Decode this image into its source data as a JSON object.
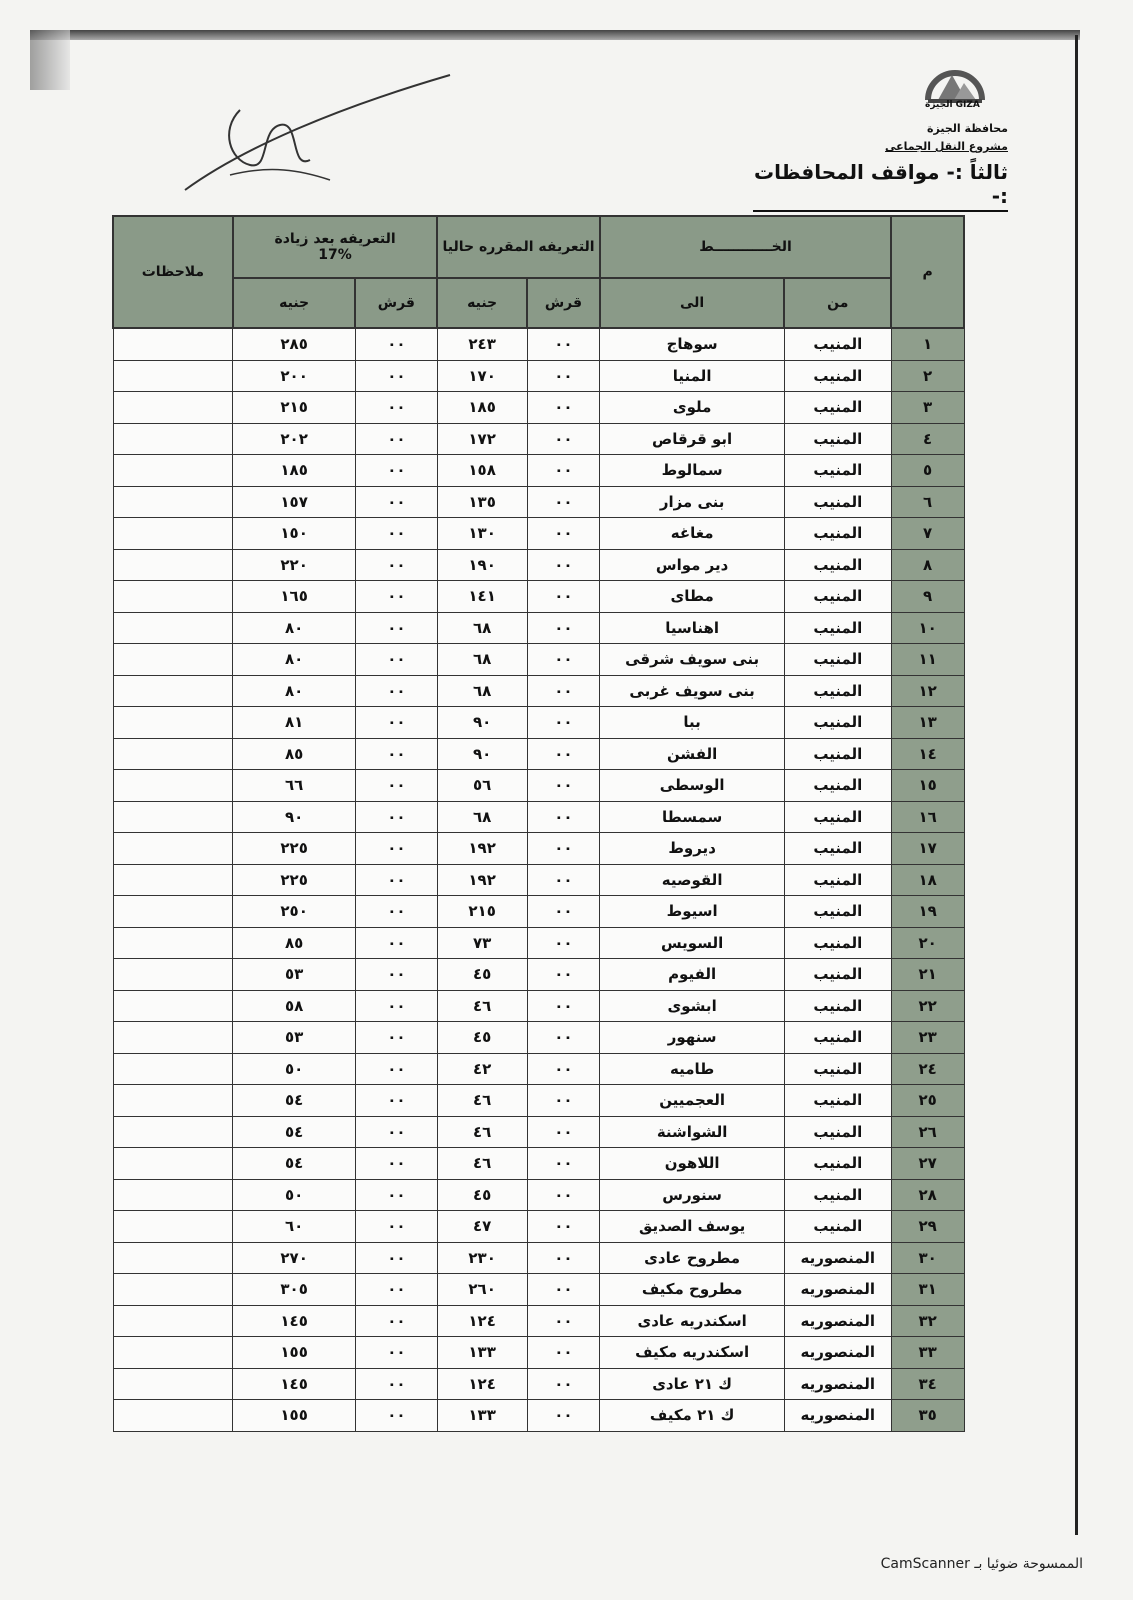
{
  "header": {
    "logo_text": "GIZA الجيزة",
    "governorate": "محافظة الجيزة",
    "project": "مشروع النقل الجماعى",
    "title": "ثالثاً :- مواقف المحافظات :-"
  },
  "table": {
    "col_num": "م",
    "col_line": "الخــــــــــــط",
    "col_from": "من",
    "col_to": "الى",
    "col_current": "التعريفه المقرره حاليا",
    "col_after": "التعريفه بعد زيادة",
    "col_after_pct": "17%",
    "col_piaster": "قرش",
    "col_pound": "جنيه",
    "col_notes": "ملاحظات",
    "rows": [
      {
        "n": "١",
        "from": "المنيب",
        "to": "سوهاج",
        "cp": "٠٠",
        "cl": "٢٤٣",
        "ap": "٠٠",
        "al": "٢٨٥"
      },
      {
        "n": "٢",
        "from": "المنيب",
        "to": "المنيا",
        "cp": "٠٠",
        "cl": "١٧٠",
        "ap": "٠٠",
        "al": "٢٠٠"
      },
      {
        "n": "٣",
        "from": "المنيب",
        "to": "ملوى",
        "cp": "٠٠",
        "cl": "١٨٥",
        "ap": "٠٠",
        "al": "٢١٥"
      },
      {
        "n": "٤",
        "from": "المنيب",
        "to": "ابو قرقاص",
        "cp": "٠٠",
        "cl": "١٧٢",
        "ap": "٠٠",
        "al": "٢٠٢"
      },
      {
        "n": "٥",
        "from": "المنيب",
        "to": "سمالوط",
        "cp": "٠٠",
        "cl": "١٥٨",
        "ap": "٠٠",
        "al": "١٨٥"
      },
      {
        "n": "٦",
        "from": "المنيب",
        "to": "بنى مزار",
        "cp": "٠٠",
        "cl": "١٣٥",
        "ap": "٠٠",
        "al": "١٥٧"
      },
      {
        "n": "٧",
        "from": "المنيب",
        "to": "مغاغه",
        "cp": "٠٠",
        "cl": "١٣٠",
        "ap": "٠٠",
        "al": "١٥٠"
      },
      {
        "n": "٨",
        "from": "المنيب",
        "to": "دير مواس",
        "cp": "٠٠",
        "cl": "١٩٠",
        "ap": "٠٠",
        "al": "٢٢٠"
      },
      {
        "n": "٩",
        "from": "المنيب",
        "to": "مطاى",
        "cp": "٠٠",
        "cl": "١٤١",
        "ap": "٠٠",
        "al": "١٦٥"
      },
      {
        "n": "١٠",
        "from": "المنيب",
        "to": "اهناسيا",
        "cp": "٠٠",
        "cl": "٦٨",
        "ap": "٠٠",
        "al": "٨٠"
      },
      {
        "n": "١١",
        "from": "المنيب",
        "to": "بنى سويف شرقى",
        "cp": "٠٠",
        "cl": "٦٨",
        "ap": "٠٠",
        "al": "٨٠"
      },
      {
        "n": "١٢",
        "from": "المنيب",
        "to": "بنى سويف غربى",
        "cp": "٠٠",
        "cl": "٦٨",
        "ap": "٠٠",
        "al": "٨٠"
      },
      {
        "n": "١٣",
        "from": "المنيب",
        "to": "ببا",
        "cp": "٠٠",
        "cl": "٩٠",
        "ap": "٠٠",
        "al": "٨١"
      },
      {
        "n": "١٤",
        "from": "المنيب",
        "to": "الفشن",
        "cp": "٠٠",
        "cl": "٩٠",
        "ap": "٠٠",
        "al": "٨٥"
      },
      {
        "n": "١٥",
        "from": "المنيب",
        "to": "الوسطى",
        "cp": "٠٠",
        "cl": "٥٦",
        "ap": "٠٠",
        "al": "٦٦"
      },
      {
        "n": "١٦",
        "from": "المنيب",
        "to": "سمسطا",
        "cp": "٠٠",
        "cl": "٦٨",
        "ap": "٠٠",
        "al": "٩٠"
      },
      {
        "n": "١٧",
        "from": "المنيب",
        "to": "ديروط",
        "cp": "٠٠",
        "cl": "١٩٢",
        "ap": "٠٠",
        "al": "٢٢٥"
      },
      {
        "n": "١٨",
        "from": "المنيب",
        "to": "القوصيه",
        "cp": "٠٠",
        "cl": "١٩٢",
        "ap": "٠٠",
        "al": "٢٢٥"
      },
      {
        "n": "١٩",
        "from": "المنيب",
        "to": "اسيوط",
        "cp": "٠٠",
        "cl": "٢١٥",
        "ap": "٠٠",
        "al": "٢٥٠"
      },
      {
        "n": "٢٠",
        "from": "المنيب",
        "to": "السويس",
        "cp": "٠٠",
        "cl": "٧٣",
        "ap": "٠٠",
        "al": "٨٥"
      },
      {
        "n": "٢١",
        "from": "المنيب",
        "to": "الفيوم",
        "cp": "٠٠",
        "cl": "٤٥",
        "ap": "٠٠",
        "al": "٥٣"
      },
      {
        "n": "٢٢",
        "from": "المنيب",
        "to": "ابشوى",
        "cp": "٠٠",
        "cl": "٤٦",
        "ap": "٠٠",
        "al": "٥٨"
      },
      {
        "n": "٢٣",
        "from": "المنيب",
        "to": "سنهور",
        "cp": "٠٠",
        "cl": "٤٥",
        "ap": "٠٠",
        "al": "٥٣"
      },
      {
        "n": "٢٤",
        "from": "المنيب",
        "to": "طاميه",
        "cp": "٠٠",
        "cl": "٤٢",
        "ap": "٠٠",
        "al": "٥٠"
      },
      {
        "n": "٢٥",
        "from": "المنيب",
        "to": "العجميين",
        "cp": "٠٠",
        "cl": "٤٦",
        "ap": "٠٠",
        "al": "٥٤"
      },
      {
        "n": "٢٦",
        "from": "المنيب",
        "to": "الشواشنة",
        "cp": "٠٠",
        "cl": "٤٦",
        "ap": "٠٠",
        "al": "٥٤"
      },
      {
        "n": "٢٧",
        "from": "المنيب",
        "to": "اللاهون",
        "cp": "٠٠",
        "cl": "٤٦",
        "ap": "٠٠",
        "al": "٥٤"
      },
      {
        "n": "٢٨",
        "from": "المنيب",
        "to": "سنورس",
        "cp": "٠٠",
        "cl": "٤٥",
        "ap": "٠٠",
        "al": "٥٠"
      },
      {
        "n": "٢٩",
        "from": "المنيب",
        "to": "يوسف الصديق",
        "cp": "٠٠",
        "cl": "٤٧",
        "ap": "٠٠",
        "al": "٦٠"
      },
      {
        "n": "٣٠",
        "from": "المنصوريه",
        "to": "مطروح عادى",
        "cp": "٠٠",
        "cl": "٢٣٠",
        "ap": "٠٠",
        "al": "٢٧٠"
      },
      {
        "n": "٣١",
        "from": "المنصوريه",
        "to": "مطروح مكيف",
        "cp": "٠٠",
        "cl": "٢٦٠",
        "ap": "٠٠",
        "al": "٣٠٥"
      },
      {
        "n": "٣٢",
        "from": "المنصوريه",
        "to": "اسكندريه عادى",
        "cp": "٠٠",
        "cl": "١٢٤",
        "ap": "٠٠",
        "al": "١٤٥"
      },
      {
        "n": "٣٣",
        "from": "المنصوريه",
        "to": "اسكندريه مكيف",
        "cp": "٠٠",
        "cl": "١٣٣",
        "ap": "٠٠",
        "al": "١٥٥"
      },
      {
        "n": "٣٤",
        "from": "المنصوريه",
        "to": "ك ٢١ عادى",
        "cp": "٠٠",
        "cl": "١٢٤",
        "ap": "٠٠",
        "al": "١٤٥"
      },
      {
        "n": "٣٥",
        "from": "المنصوريه",
        "to": "ك ٢١ مكيف",
        "cp": "٠٠",
        "cl": "١٣٣",
        "ap": "٠٠",
        "al": "١٥٥"
      }
    ]
  },
  "footer": {
    "scanner_text": "الممسوحة ضوئيا بـ CamScanner"
  }
}
